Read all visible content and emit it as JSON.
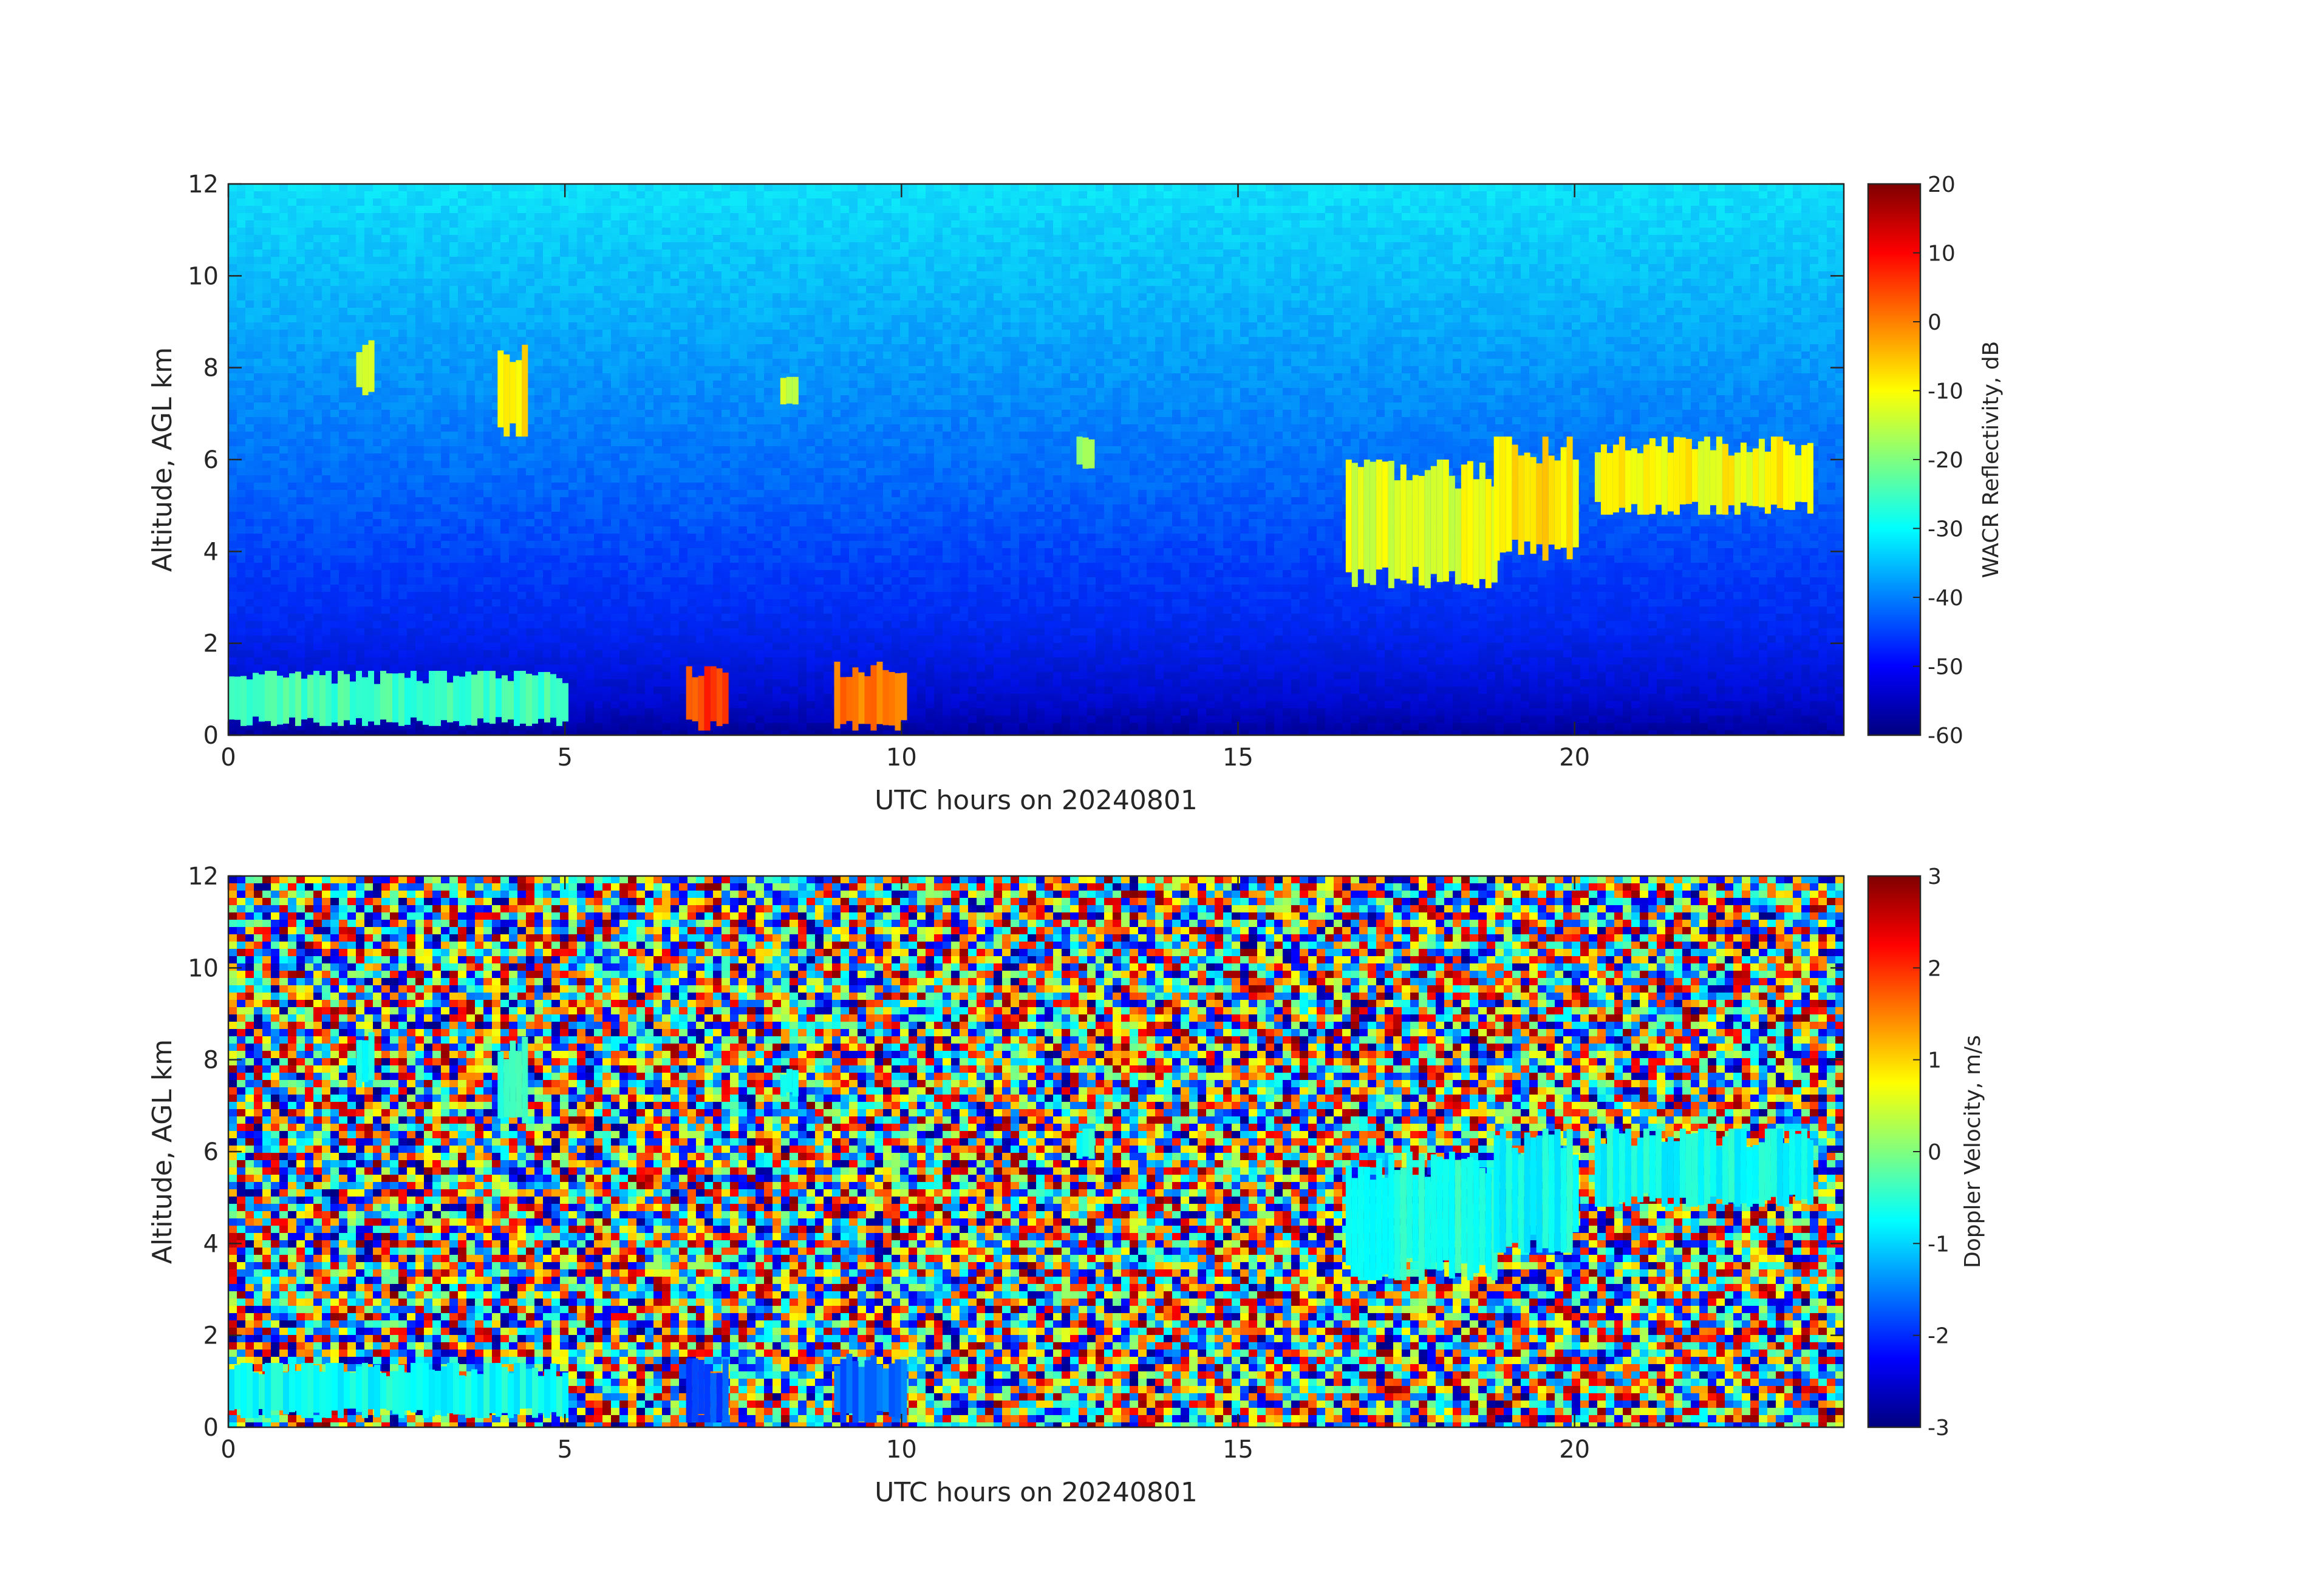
{
  "chart_data": [
    {
      "type": "heatmap",
      "xlabel": "UTC hours on 20240801",
      "ylabel": "Altitude, AGL km",
      "xlim": [
        0,
        24
      ],
      "ylim": [
        0,
        12
      ],
      "x_ticks": [
        0,
        5,
        10,
        15,
        20
      ],
      "y_ticks": [
        0,
        2,
        4,
        6,
        8,
        10,
        12
      ],
      "colorbar": {
        "label": "WACR Reflectivity, dB",
        "range": [
          -60,
          20
        ],
        "ticks": [
          20,
          10,
          0,
          -10,
          -20,
          -30,
          -40,
          -50,
          -60
        ],
        "colormap": "jet"
      },
      "background": {
        "description_values": {
          "surface_dB": -58,
          "top_dB": -32
        }
      },
      "features": [
        {
          "x": [
            0.0,
            5.0
          ],
          "y": [
            0.2,
            1.4
          ],
          "value_dB": -25
        },
        {
          "x": [
            1.9,
            2.1
          ],
          "y": [
            7.4,
            8.6
          ],
          "value_dB": -15
        },
        {
          "x": [
            4.0,
            4.4
          ],
          "y": [
            6.5,
            8.5
          ],
          "value_dB": -8
        },
        {
          "x": [
            8.2,
            8.4
          ],
          "y": [
            7.2,
            7.8
          ],
          "value_dB": -15
        },
        {
          "x": [
            12.6,
            12.8
          ],
          "y": [
            5.8,
            6.5
          ],
          "value_dB": -18
        },
        {
          "x": [
            16.6,
            18.8
          ],
          "y": [
            3.2,
            6.0
          ],
          "value_dB": -12
        },
        {
          "x": [
            18.8,
            20.0
          ],
          "y": [
            3.8,
            6.5
          ],
          "value_dB": -8
        },
        {
          "x": [
            20.3,
            23.5
          ],
          "y": [
            4.8,
            6.5
          ],
          "value_dB": -10
        },
        {
          "x": [
            6.8,
            7.4
          ],
          "y": [
            0.1,
            1.5
          ],
          "value_dB": 5
        },
        {
          "x": [
            9.0,
            10.0
          ],
          "y": [
            0.1,
            1.6
          ],
          "value_dB": 0
        }
      ]
    },
    {
      "type": "heatmap",
      "xlabel": "UTC hours on 20240801",
      "ylabel": "Altitude, AGL km",
      "xlim": [
        0,
        24
      ],
      "ylim": [
        0,
        12
      ],
      "x_ticks": [
        0,
        5,
        10,
        15,
        20
      ],
      "y_ticks": [
        0,
        2,
        4,
        6,
        8,
        10,
        12
      ],
      "colorbar": {
        "label": "Doppler Velocity, m/s",
        "range": [
          -3,
          3
        ],
        "ticks": [
          3,
          2,
          1,
          0,
          -1,
          -2,
          -3
        ],
        "colormap": "jet"
      },
      "background": {
        "description_values": {
          "noise": "random -3 to 3"
        }
      },
      "features": [
        {
          "x": [
            0.0,
            5.0
          ],
          "y": [
            0.2,
            1.4
          ],
          "value_ms": -0.7
        },
        {
          "x": [
            1.9,
            2.1
          ],
          "y": [
            7.4,
            8.6
          ],
          "value_ms": -0.6
        },
        {
          "x": [
            4.0,
            4.4
          ],
          "y": [
            6.5,
            8.5
          ],
          "value_ms": -0.5
        },
        {
          "x": [
            8.2,
            8.4
          ],
          "y": [
            7.2,
            7.8
          ],
          "value_ms": -0.6
        },
        {
          "x": [
            12.6,
            12.8
          ],
          "y": [
            5.8,
            6.5
          ],
          "value_ms": -0.6
        },
        {
          "x": [
            16.6,
            18.8
          ],
          "y": [
            3.2,
            6.0
          ],
          "value_ms": -0.6
        },
        {
          "x": [
            18.8,
            20.0
          ],
          "y": [
            3.8,
            6.5
          ],
          "value_ms": -0.7
        },
        {
          "x": [
            20.3,
            23.5
          ],
          "y": [
            4.8,
            6.5
          ],
          "value_ms": -0.7
        },
        {
          "x": [
            6.8,
            7.4
          ],
          "y": [
            0.1,
            1.5
          ],
          "value_ms": -1.8
        },
        {
          "x": [
            9.0,
            10.0
          ],
          "y": [
            0.1,
            1.6
          ],
          "value_ms": -1.6
        }
      ]
    }
  ]
}
